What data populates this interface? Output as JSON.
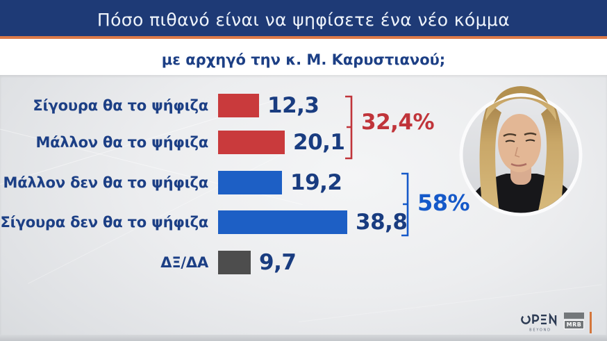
{
  "header": {
    "title": "Πόσο πιθανό είναι να ψηφίσετε ένα νέο κόμμα",
    "subtitle": "με αρχηγό την κ. Μ. Καρυστιανού;"
  },
  "colors": {
    "navy_header": "#1e3a76",
    "accent_orange": "#dd7a48",
    "label_navy": "#1c3f85",
    "value_navy": "#193c80",
    "bar_red": "#c93a3c",
    "bar_blue": "#1d5fc5",
    "bar_gray": "#4d4d4d",
    "group_red": "#c0343a",
    "group_blue": "#1559c9"
  },
  "chart_data": {
    "type": "bar",
    "orientation": "horizontal",
    "title": "Πόσο πιθανό είναι να ψηφίσετε ένα νέο κόμμα με αρχηγό την κ. Μ. Καρυστιανού;",
    "categories": [
      "Σίγουρα θα το ψήφιζα",
      "Μάλλον θα το ψήφιζα",
      "Μάλλον δεν θα το ψήφιζα",
      "Σίγουρα δεν θα το ψήφιζα",
      "ΔΞ/ΔΑ"
    ],
    "values": [
      12.3,
      20.1,
      19.2,
      38.8,
      9.7
    ],
    "value_labels": [
      "12,3",
      "20,1",
      "19,2",
      "38,8",
      "9,7"
    ],
    "bar_colors": [
      "#c93a3c",
      "#c93a3c",
      "#1d5fc5",
      "#1d5fc5",
      "#4d4d4d"
    ],
    "xlim": [
      0,
      40
    ],
    "grid": false,
    "groups": [
      {
        "label": "32,4%",
        "rows": [
          0,
          1
        ],
        "sum_of": "would vote (definitely + probably)",
        "color": "#c0343a"
      },
      {
        "label": "58%",
        "rows": [
          2,
          3
        ],
        "sum_of": "would not vote (probably + definitely)",
        "color": "#1559c9"
      }
    ]
  },
  "photo": {
    "person": "Μ. Καρυστιανού"
  },
  "footer": {
    "open_logo": "OPEN",
    "open_sub": "BEYOND",
    "mrb_label": "MRB"
  }
}
